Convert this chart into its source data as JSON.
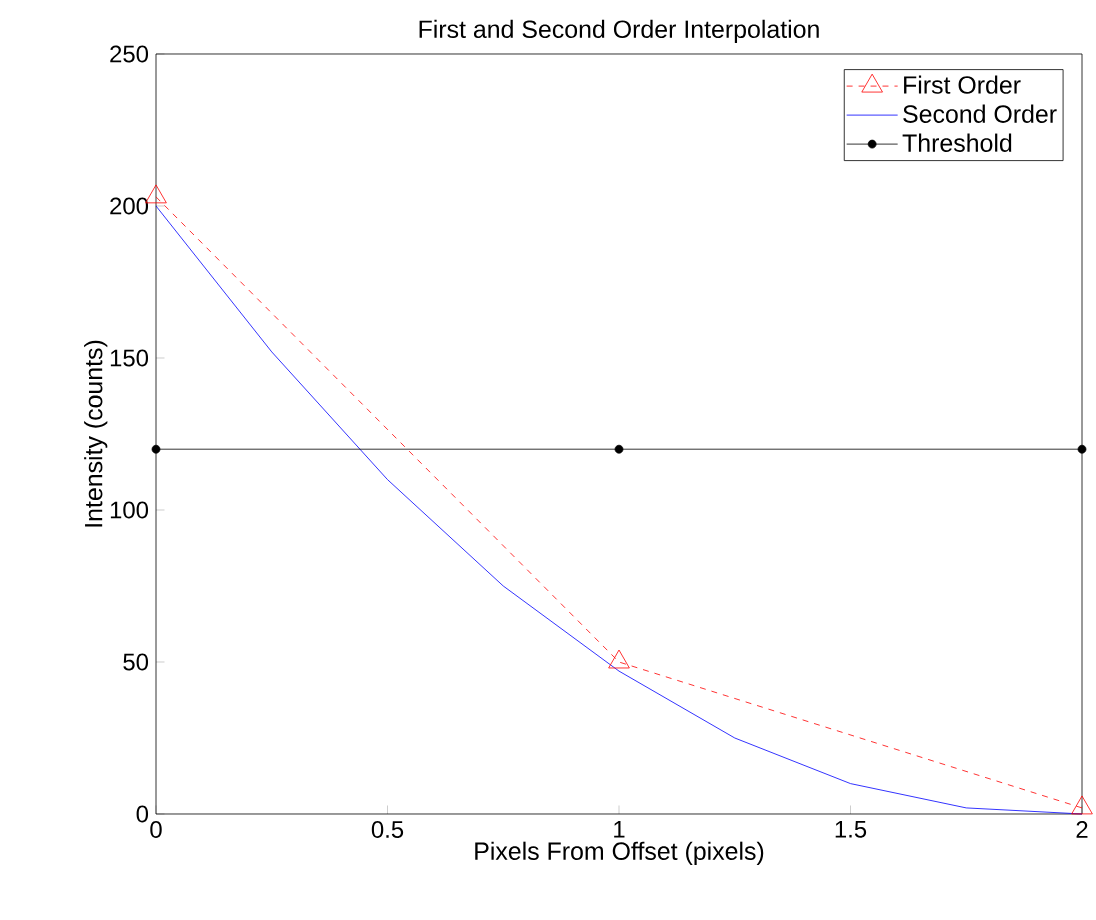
{
  "chart_data": {
    "type": "line",
    "title": "First and Second Order Interpolation",
    "xlabel": "Pixels From Offset (pixels)",
    "ylabel": "Intensity (counts)",
    "xlim": [
      0,
      2
    ],
    "ylim": [
      0,
      250
    ],
    "xticks": [
      0,
      0.5,
      1,
      1.5,
      2
    ],
    "yticks": [
      0,
      50,
      100,
      150,
      200,
      250
    ],
    "grid": false,
    "legend": "top right",
    "series": [
      {
        "name": "First Order",
        "color": "#ff0000",
        "x": [
          0,
          1,
          2
        ],
        "values": [
          203,
          50,
          2
        ],
        "marker": "triangle",
        "line_style": "dashed"
      },
      {
        "name": "Second Order",
        "color": "#0000ff",
        "x": [
          0,
          0.25,
          0.5,
          0.75,
          1,
          1.25,
          1.5,
          1.75,
          2
        ],
        "values": [
          200,
          152,
          110,
          75,
          47,
          25,
          10,
          2,
          0
        ],
        "marker": "none",
        "line_style": "solid"
      },
      {
        "name": "Threshold",
        "color": "#000000",
        "x": [
          0,
          1,
          2
        ],
        "values": [
          120,
          120,
          120
        ],
        "marker": "circle",
        "line_style": "solid"
      }
    ]
  }
}
